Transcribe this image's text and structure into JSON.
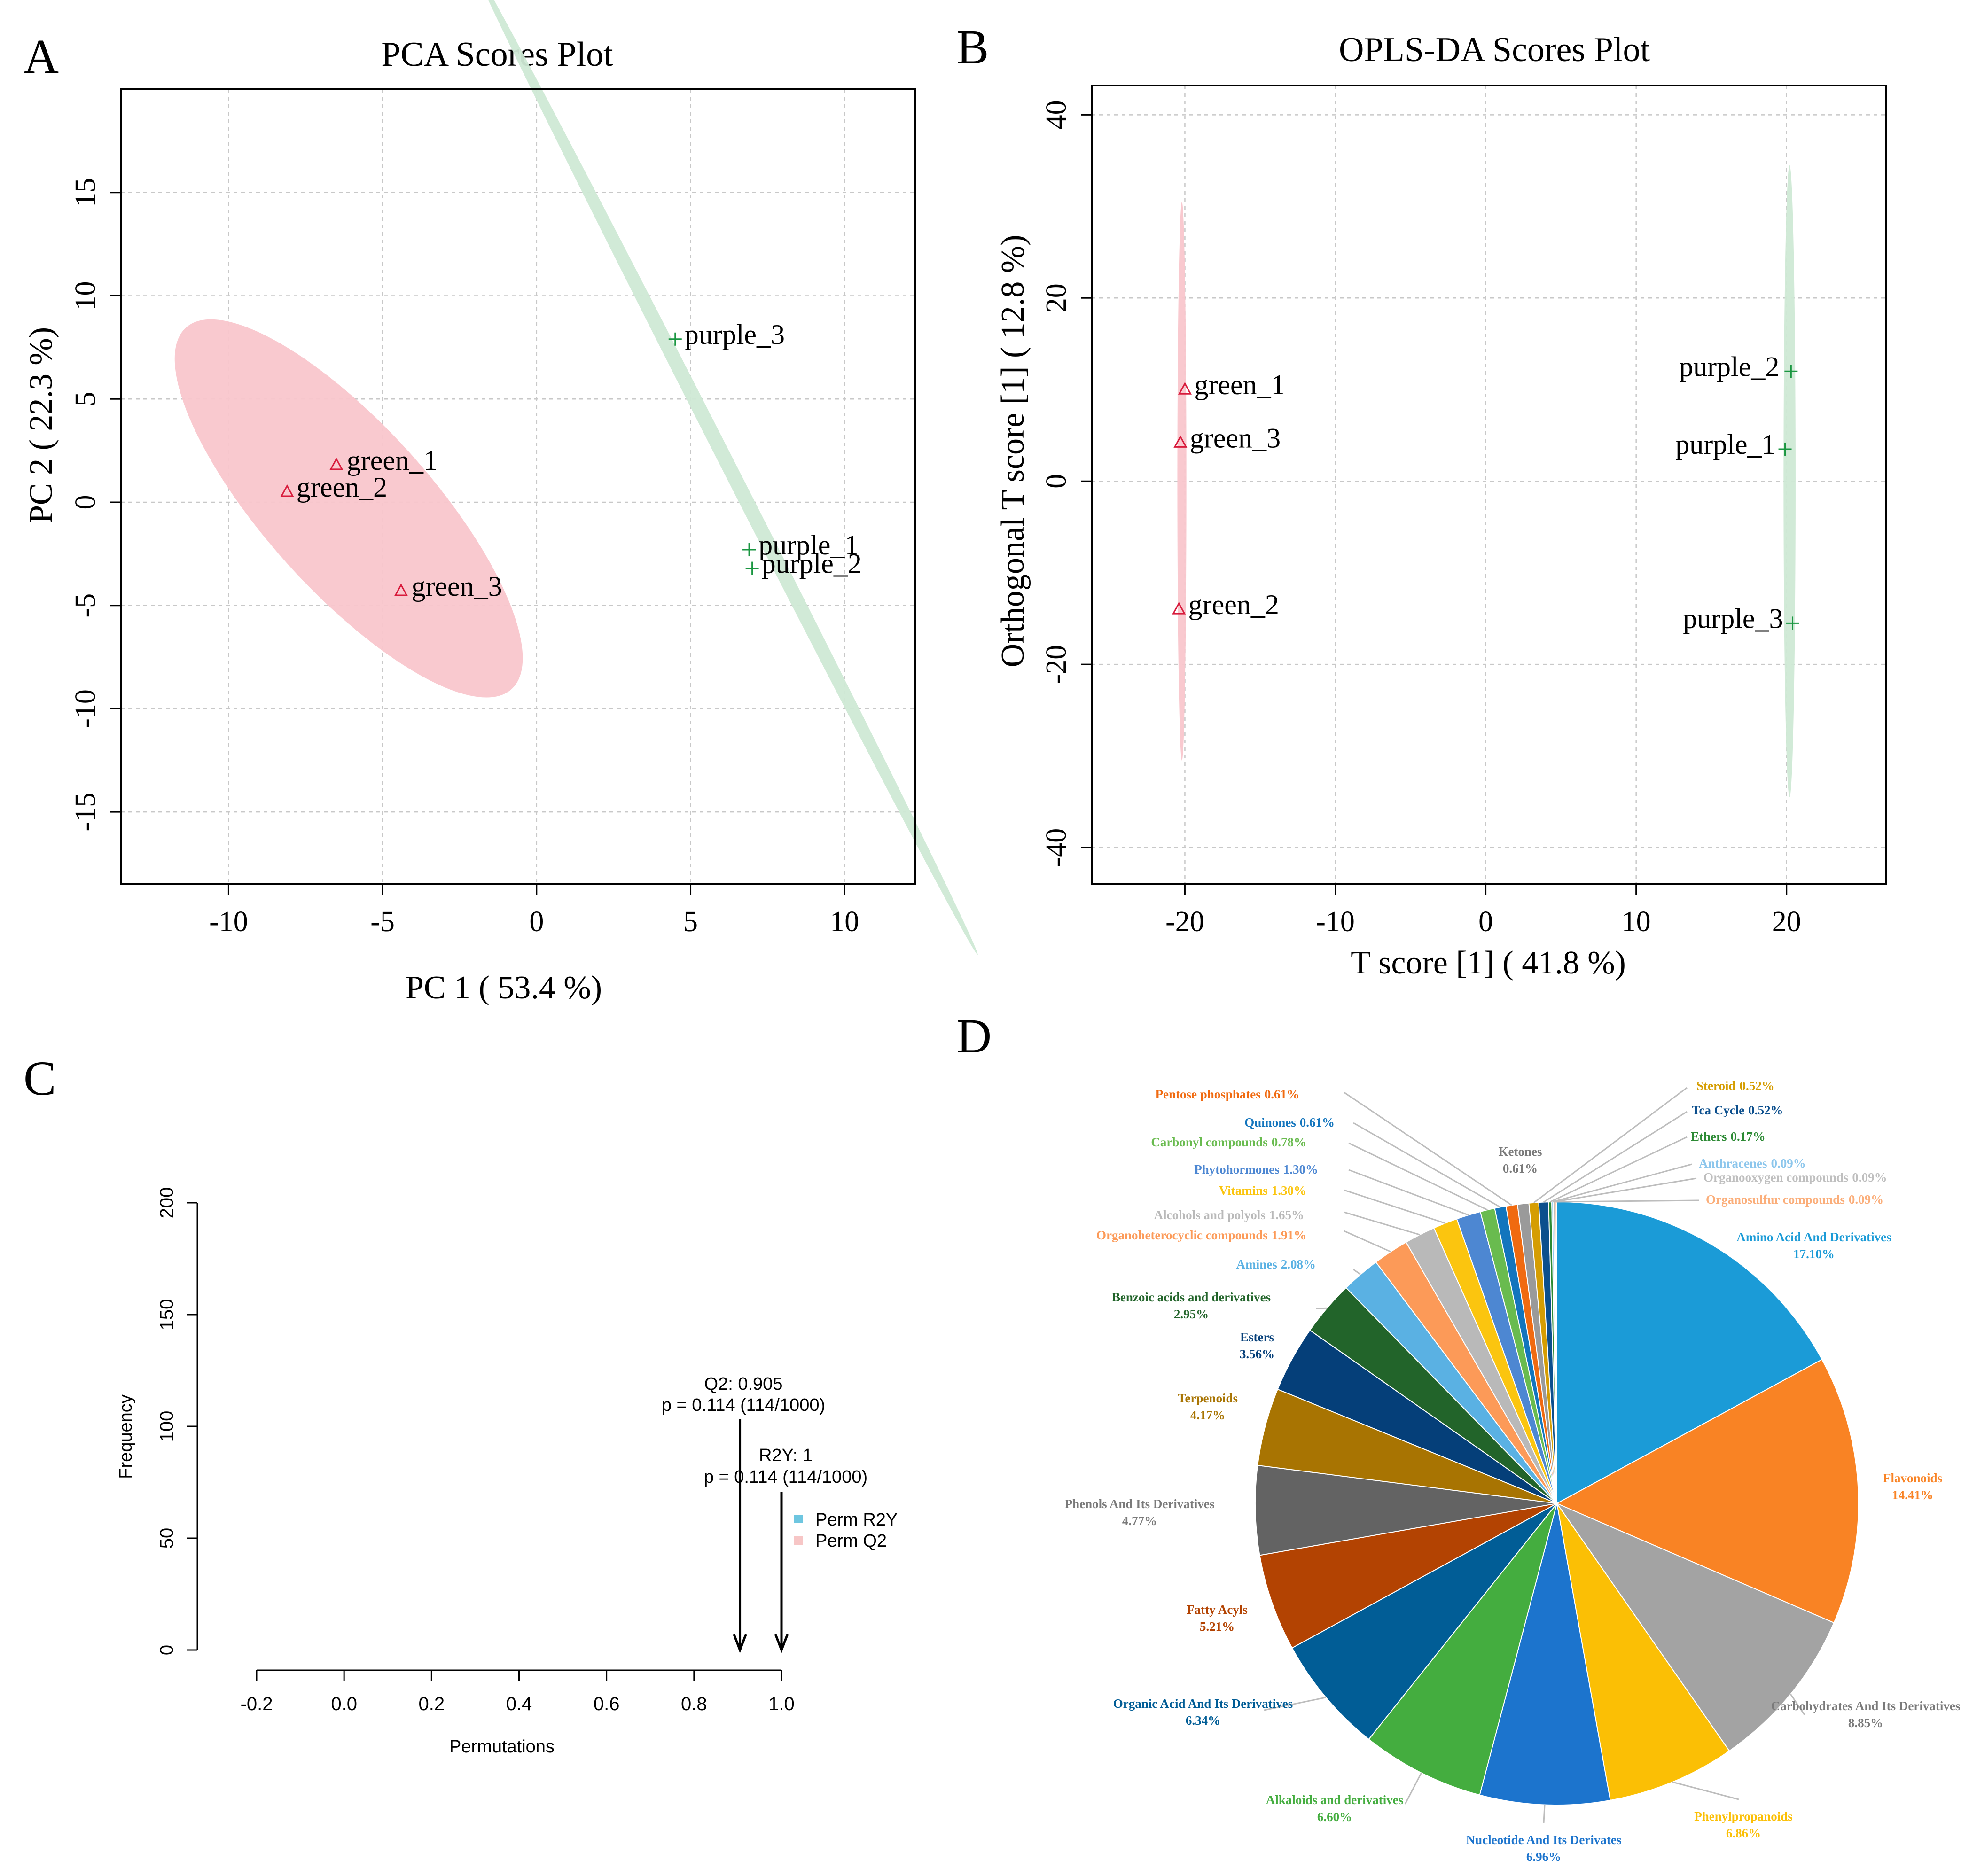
{
  "panels": {
    "A": {
      "letter": "A",
      "title": "PCA Scores Plot",
      "xlabel": "PC 1 ( 53.4 %)",
      "ylabel": "PC 2 ( 22.3 %)",
      "xticks": [
        "-10",
        "-5",
        "0",
        "5",
        "10"
      ],
      "yticks": [
        "15",
        "10",
        "5",
        "0",
        "-5",
        "-10",
        "-15"
      ]
    },
    "B": {
      "letter": "B",
      "title": "OPLS-DA Scores Plot",
      "xlabel": "T score [1] ( 41.8 %)",
      "ylabel": "Orthogonal T score [1] ( 12.8 %)",
      "xticks": [
        "-20",
        "-10",
        "0",
        "10",
        "20"
      ],
      "yticks": [
        "40",
        "20",
        "0",
        "-20",
        "-40"
      ]
    },
    "C": {
      "letter": "C",
      "xlabel": "Permutations",
      "ylabel": "Frequency",
      "xticks": [
        "-0.2",
        "0.0",
        "0.2",
        "0.4",
        "0.6",
        "0.8",
        "1.0"
      ],
      "yticks": [
        "200",
        "150",
        "100",
        "50",
        "0"
      ],
      "q2_label": "Q2: 0.905",
      "q2_p": "p = 0.114 (114/1000)",
      "r2y_label": "R2Y: 1",
      "r2y_p": "p = 0.114 (114/1000)",
      "legend_r2y": "Perm R2Y",
      "legend_q2": "Perm Q2"
    },
    "D": {
      "letter": "D"
    }
  },
  "chart_data": [
    {
      "type": "scatter",
      "title": "PCA Scores Plot",
      "xlabel": "PC 1 ( 53.4 %)",
      "ylabel": "PC 2 ( 22.3 %)",
      "xlim": [
        -13.5,
        12.3
      ],
      "ylim": [
        -18.5,
        20
      ],
      "grid": true,
      "points": [
        {
          "label": "green_1",
          "group": "green",
          "x": -6.5,
          "y": 1.8
        },
        {
          "label": "green_2",
          "group": "green",
          "x": -8.1,
          "y": 0.5
        },
        {
          "label": "green_3",
          "group": "green",
          "x": -4.4,
          "y": -4.3
        },
        {
          "label": "purple_3",
          "group": "purple",
          "x": 4.5,
          "y": 7.9
        },
        {
          "label": "purple_1",
          "group": "purple",
          "x": 6.9,
          "y": -2.3
        },
        {
          "label": "purple_2",
          "group": "purple",
          "x": 7.0,
          "y": -3.2
        }
      ],
      "colors": {
        "green": "#d81b3c",
        "purple": "#1a9641"
      },
      "ellipse_colors": {
        "green": "#f9c6cc",
        "purple": "#cfe9d5"
      }
    },
    {
      "type": "scatter",
      "title": "OPLS-DA Scores Plot",
      "xlabel": "T score [1] ( 41.8 %)",
      "ylabel": "Orthogonal T score [1] ( 12.8 %)",
      "xlim": [
        -26.2,
        26.6
      ],
      "ylim": [
        -44,
        43.2
      ],
      "grid": true,
      "points": [
        {
          "label": "green_1",
          "group": "green",
          "x": -20,
          "y": 10
        },
        {
          "label": "green_3",
          "group": "green",
          "x": -20.3,
          "y": 4.2
        },
        {
          "label": "green_2",
          "group": "green",
          "x": -20.4,
          "y": -14
        },
        {
          "label": "purple_2",
          "group": "purple",
          "x": 20.3,
          "y": 12
        },
        {
          "label": "purple_1",
          "group": "purple",
          "x": 19.9,
          "y": 3.5
        },
        {
          "label": "purple_3",
          "group": "purple",
          "x": 20.4,
          "y": -15.5
        }
      ],
      "colors": {
        "green": "#d81b3c",
        "purple": "#1a9641"
      },
      "ellipse_colors": {
        "green": "#f9c6cc",
        "purple": "#cfe9d5"
      }
    },
    {
      "type": "histogram",
      "xlabel": "Permutations",
      "ylabel": "Frequency",
      "xlim": [
        -0.2,
        1.0
      ],
      "ylim": [
        0,
        200
      ],
      "markers": [
        {
          "name": "Q2",
          "x": 0.905,
          "p": 0.114
        },
        {
          "name": "R2Y",
          "x": 1.0,
          "p": 0.114
        }
      ],
      "legend": [
        "Perm R2Y",
        "Perm Q2"
      ],
      "legend_colors": [
        "#6ec6e0",
        "#f7c6c6"
      ]
    },
    {
      "type": "pie",
      "slices": [
        {
          "name": "Amino Acid And Derivatives",
          "value": 17.1,
          "label": "17.10%",
          "color": "#1b9bd7"
        },
        {
          "name": "Flavonoids",
          "value": 14.41,
          "label": "14.41%",
          "color": "#f98324"
        },
        {
          "name": "Carbohydrates And Its Derivatives",
          "value": 8.85,
          "label": "8.85%",
          "color": "#a3a3a3"
        },
        {
          "name": "Phenylpropanoids",
          "value": 6.86,
          "label": "6.86%",
          "color": "#fbbf05"
        },
        {
          "name": "Nucleotide And Its Derivates",
          "value": 6.96,
          "label": "6.96%",
          "color": "#1c74cd"
        },
        {
          "name": "Alkaloids and derivatives",
          "value": 6.6,
          "label": "6.60%",
          "color": "#44ad3f"
        },
        {
          "name": "Organic Acid And Its Derivatives",
          "value": 6.34,
          "label": "6.34%",
          "color": "#015d96"
        },
        {
          "name": "Fatty Acyls",
          "value": 5.21,
          "label": "5.21%",
          "color": "#b34302"
        },
        {
          "name": "Phenols And Its Derivatives",
          "value": 4.77,
          "label": "4.77%",
          "color": "#636363"
        },
        {
          "name": "Terpenoids",
          "value": 4.17,
          "label": "4.17%",
          "color": "#a87402"
        },
        {
          "name": "Esters",
          "value": 3.56,
          "label": "3.56%",
          "color": "#053f79"
        },
        {
          "name": "Benzoic acids and derivatives",
          "value": 2.95,
          "label": "2.95%",
          "color": "#22642a"
        },
        {
          "name": "Amines",
          "value": 2.08,
          "label": "2.08%",
          "color": "#5ab1e3"
        },
        {
          "name": "Organoheterocyclic compounds",
          "value": 1.91,
          "label": "1.91%",
          "color": "#fc9a58"
        },
        {
          "name": "Alcohols and polyols",
          "value": 1.65,
          "label": "1.65%",
          "color": "#b9b9b9"
        },
        {
          "name": "Vitamins",
          "value": 1.3,
          "label": "1.30%",
          "color": "#fbc50f"
        },
        {
          "name": "Phytohormones",
          "value": 1.3,
          "label": "1.30%",
          "color": "#4d87d2"
        },
        {
          "name": "Carbonyl compounds",
          "value": 0.78,
          "label": "0.78%",
          "color": "#69bb4f"
        },
        {
          "name": "Quinones",
          "value": 0.61,
          "label": "0.61%",
          "color": "#1375bd"
        },
        {
          "name": "Pentose phosphates",
          "value": 0.61,
          "label": "0.61%",
          "color": "#f06a10"
        },
        {
          "name": "Ketones",
          "value": 0.61,
          "label": "0.61%",
          "color": "#9a9a9a"
        },
        {
          "name": "Steroid",
          "value": 0.52,
          "label": "0.52%",
          "color": "#d59d02"
        },
        {
          "name": "Tca Cycle",
          "value": 0.52,
          "label": "0.52%",
          "color": "#0c4f8d"
        },
        {
          "name": "Ethers",
          "value": 0.17,
          "label": "0.17%",
          "color": "#2c8a34"
        },
        {
          "name": "Anthracenes",
          "value": 0.09,
          "label": "0.09%",
          "color": "#8cc6ec"
        },
        {
          "name": "Organooxygen compounds",
          "value": 0.09,
          "label": "0.09%",
          "color": "#bfbfbf"
        },
        {
          "name": "Organosulfur compounds",
          "value": 0.09,
          "label": "0.09%",
          "color": "#fbae7a"
        }
      ]
    }
  ]
}
